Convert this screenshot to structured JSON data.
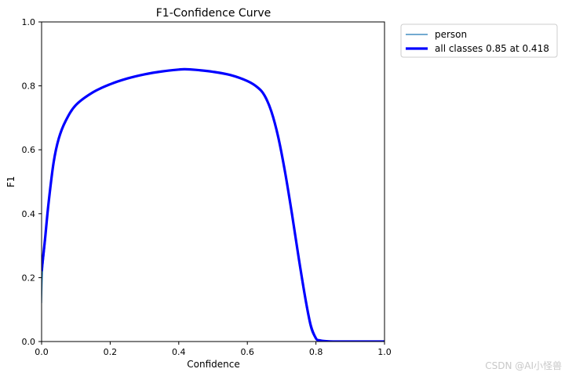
{
  "chart_data": {
    "type": "line",
    "title": "F1-Confidence Curve",
    "xlabel": "Confidence",
    "ylabel": "F1",
    "xlim": [
      0.0,
      1.0
    ],
    "ylim": [
      0.0,
      1.0
    ],
    "xticks": [
      "0.0",
      "0.2",
      "0.4",
      "0.6",
      "0.8",
      "1.0"
    ],
    "yticks": [
      "0.0",
      "0.2",
      "0.4",
      "0.6",
      "0.8",
      "1.0"
    ],
    "grid": false,
    "legend_position": "outside-top-right",
    "series": [
      {
        "name": "person",
        "color": "#1f77b4",
        "linewidth": "thin",
        "x": [
          0.0,
          0.003,
          0.01,
          0.02,
          0.035,
          0.05,
          0.07,
          0.1,
          0.15,
          0.2,
          0.25,
          0.3,
          0.35,
          0.4,
          0.418,
          0.45,
          0.5,
          0.55,
          0.6,
          0.63,
          0.65,
          0.67,
          0.69,
          0.71,
          0.73,
          0.75,
          0.77,
          0.785,
          0.8,
          0.81,
          0.83,
          0.85,
          0.9,
          0.95,
          1.0
        ],
        "y": [
          0.12,
          0.22,
          0.3,
          0.42,
          0.55,
          0.63,
          0.69,
          0.74,
          0.78,
          0.805,
          0.823,
          0.836,
          0.845,
          0.851,
          0.852,
          0.85,
          0.844,
          0.834,
          0.815,
          0.795,
          0.77,
          0.72,
          0.64,
          0.53,
          0.4,
          0.25,
          0.12,
          0.04,
          0.008,
          0.003,
          0.001,
          0.0,
          0.0,
          0.0,
          0.0
        ]
      },
      {
        "name": "all classes 0.85 at 0.418",
        "color": "#0000ff",
        "linewidth": "thick",
        "x": [
          0.0,
          0.003,
          0.01,
          0.02,
          0.035,
          0.05,
          0.07,
          0.1,
          0.15,
          0.2,
          0.25,
          0.3,
          0.35,
          0.4,
          0.418,
          0.45,
          0.5,
          0.55,
          0.6,
          0.63,
          0.65,
          0.67,
          0.69,
          0.71,
          0.73,
          0.75,
          0.77,
          0.785,
          0.8,
          0.81,
          0.83,
          0.85,
          0.9,
          0.95,
          1.0
        ],
        "y": [
          0.22,
          0.25,
          0.32,
          0.43,
          0.56,
          0.635,
          0.69,
          0.74,
          0.78,
          0.805,
          0.823,
          0.836,
          0.845,
          0.851,
          0.852,
          0.85,
          0.844,
          0.834,
          0.815,
          0.795,
          0.77,
          0.72,
          0.64,
          0.53,
          0.4,
          0.26,
          0.13,
          0.05,
          0.01,
          0.004,
          0.001,
          0.0,
          0.0,
          0.0,
          0.0
        ]
      }
    ]
  },
  "watermark": "CSDN @AI小怪兽"
}
